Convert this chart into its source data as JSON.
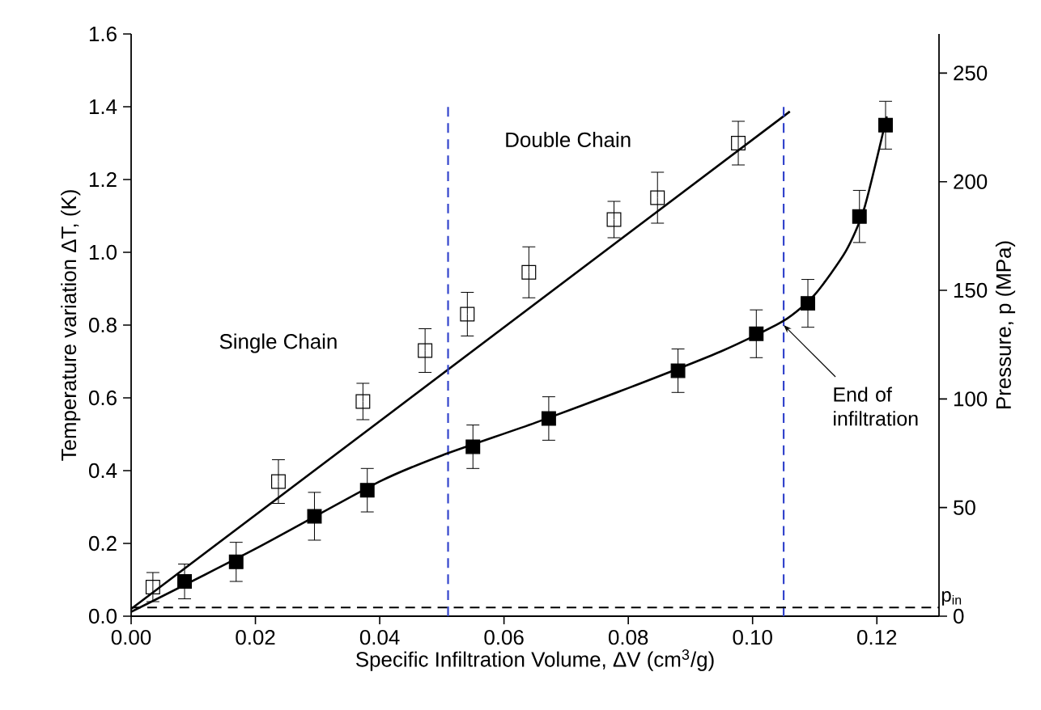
{
  "chart_data": {
    "type": "scatter",
    "xlabel": "Specific Infiltration Volume, ΔV (cm$^{3}$/g)",
    "ylabel": "Temperature variation ΔT, (K)",
    "y2label": "Pressure, p (MPa)",
    "xlim": [
      0,
      0.13
    ],
    "xticks": [
      {
        "value": 0,
        "label": "0.00"
      },
      {
        "value": 0.02,
        "label": "0.02"
      },
      {
        "value": 0.04,
        "label": "0.04"
      },
      {
        "value": 0.06,
        "label": "0.06"
      },
      {
        "value": 0.08,
        "label": "0.08"
      },
      {
        "value": 0.1,
        "label": "0.10"
      },
      {
        "value": 0.12,
        "label": "0.12"
      }
    ],
    "ylim": [
      0,
      1.6
    ],
    "yticks": [
      {
        "value": 0,
        "label": "0.0"
      },
      {
        "value": 0.2,
        "label": "0.2"
      },
      {
        "value": 0.4,
        "label": "0.4"
      },
      {
        "value": 0.6,
        "label": "0.6"
      },
      {
        "value": 0.8,
        "label": "0.8"
      },
      {
        "value": 1.0,
        "label": "1.0"
      },
      {
        "value": 1.2,
        "label": "1.2"
      },
      {
        "value": 1.4,
        "label": "1.4"
      },
      {
        "value": 1.6,
        "label": "1.6"
      }
    ],
    "y2lim": [
      0,
      268
    ],
    "y2ticks": [
      0,
      50,
      100,
      150,
      200,
      250
    ],
    "marker": "square",
    "series": [
      {
        "color": "#000000",
        "marker": "square",
        "axis": "y",
        "x": [
          0.0035,
          0.0237,
          0.0373,
          0.0473,
          0.0541,
          0.064,
          0.0777,
          0.0847,
          0.0977
        ],
        "values": [
          0.08,
          0.37,
          0.59,
          0.73,
          0.83,
          0.945,
          1.09,
          1.15,
          1.3
        ],
        "errors": [
          0.04,
          0.06,
          0.05,
          0.06,
          0.06,
          0.07,
          0.05,
          0.07,
          0.06
        ]
      },
      {
        "color": "#000000",
        "axis": "y2",
        "x": [
          0.0086,
          0.0169,
          0.0295,
          0.038,
          0.055,
          0.0672,
          0.088,
          0.1006,
          0.1089,
          0.1172,
          0.1214
        ],
        "values": [
          16,
          25,
          46,
          58,
          78,
          91,
          113,
          130,
          144,
          184,
          226
        ],
        "errors": [
          8,
          9,
          11,
          10,
          10,
          10,
          10,
          11,
          11,
          12,
          11
        ]
      },
      {
        "type": "line",
        "color": "#000000",
        "axis": "y",
        "marker": "none",
        "line_style": "solid",
        "x": [
          0,
          0.106
        ],
        "values": [
          0.02,
          1.387
        ]
      },
      {
        "type": "line",
        "color": "#000000",
        "axis": "y2",
        "marker": "none",
        "line_style": "solid",
        "x": [
          0,
          0.02,
          0.04,
          0.05,
          0.065,
          0.08,
          0.095,
          0.105,
          0.11,
          0.115,
          0.118,
          0.1216
        ],
        "values": [
          2,
          31,
          62,
          74,
          89,
          105,
          122,
          136,
          148,
          168,
          188,
          230
        ]
      }
    ],
    "ref_lines": [
      {
        "axis": "x",
        "value": 0.051,
        "color": "#3344cc",
        "line_style": "dashed"
      },
      {
        "axis": "x",
        "value": 0.105,
        "color": "#3344cc",
        "line_style": "dashed"
      },
      {
        "axis": "y2",
        "value": 4,
        "color": "#000000",
        "line_style": "dashed",
        "label": "p$_{in}$"
      }
    ],
    "annotations": [
      "Single Chain",
      "Double Chain",
      {
        "text": "End of infiltration",
        "x": 0.105,
        "y": 0.8
      }
    ],
    "grid": false
  }
}
